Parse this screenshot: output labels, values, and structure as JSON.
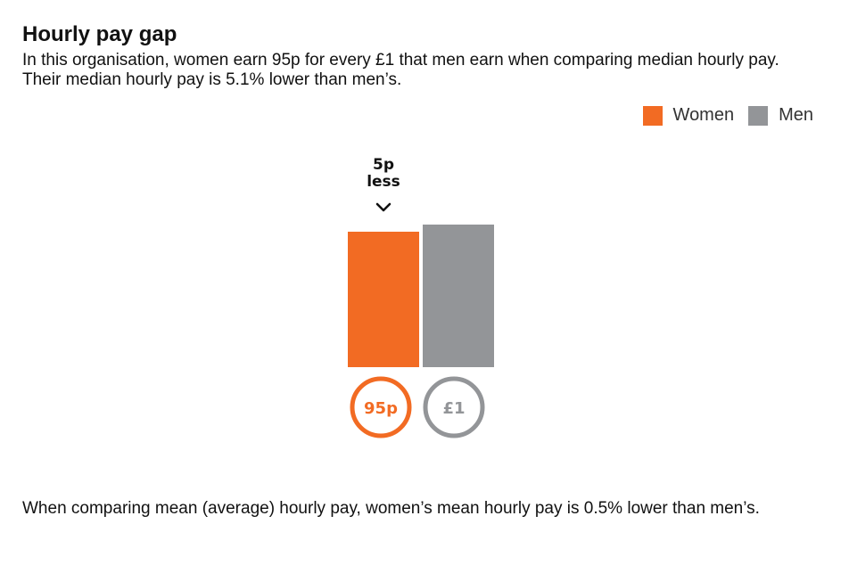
{
  "title": "Hourly pay gap",
  "intro": "In this organisation, women earn 95p for every £1 that men earn when comparing median hourly pay. Their median hourly pay is 5.1% lower than men’s.",
  "legend": {
    "women": "Women",
    "men": "Men"
  },
  "colors": {
    "women": "#f26b23",
    "men": "#939598",
    "text": "#111111"
  },
  "chart_data": {
    "type": "bar",
    "title": "Hourly pay gap",
    "categories": [
      "Women",
      "Men"
    ],
    "values": [
      0.95,
      1.0
    ],
    "units": "£ per £1 (median hourly pay)",
    "ylim": [
      0,
      1.0
    ],
    "grid": false,
    "legend_position": "top-right",
    "value_labels": [
      "95p",
      "£1"
    ],
    "annotation": {
      "line1": "5p",
      "line2": "less",
      "icon": "chevron-down-icon"
    }
  },
  "footer": "When comparing mean (average) hourly pay, women’s mean hourly pay is 0.5% lower than men’s."
}
